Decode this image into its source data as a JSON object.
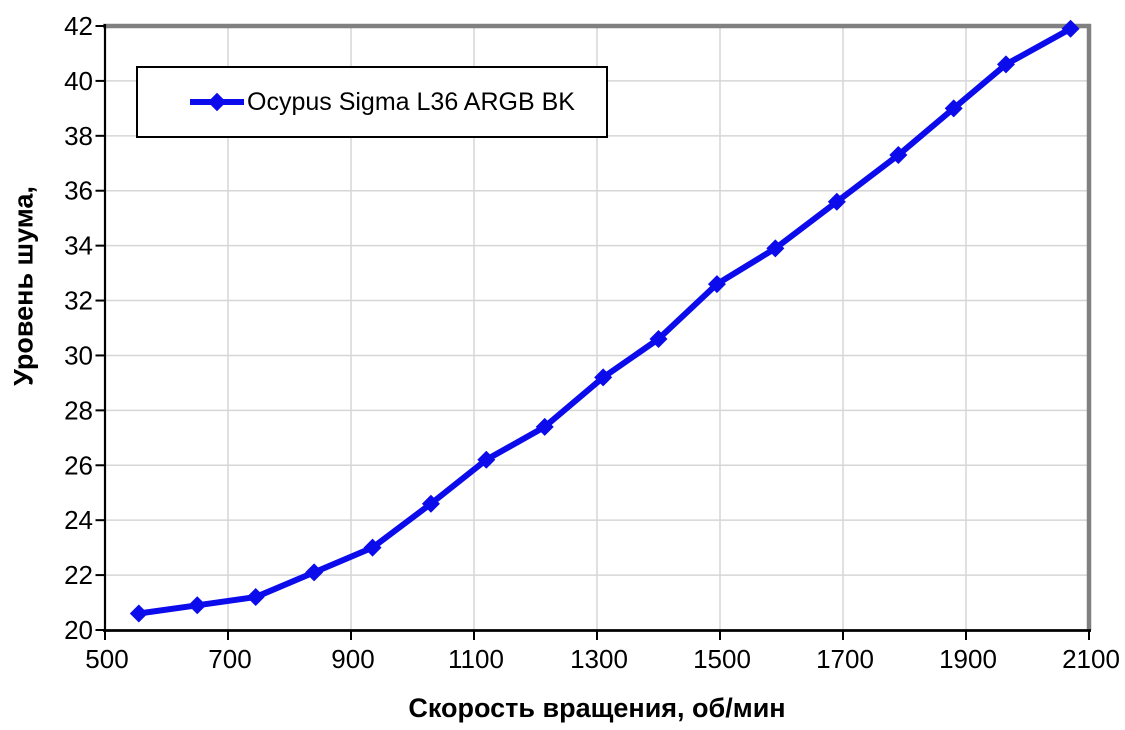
{
  "chart_data": {
    "type": "line",
    "title": "",
    "xlabel": "Скорость вращения, об/мин",
    "ylabel": "Уровень шума,",
    "xlim": [
      500,
      2100
    ],
    "ylim": [
      20,
      42
    ],
    "xticks": [
      500,
      700,
      900,
      1100,
      1300,
      1500,
      1700,
      1900,
      2100
    ],
    "yticks": [
      20,
      22,
      24,
      26,
      28,
      30,
      32,
      34,
      36,
      38,
      40,
      42
    ],
    "grid": true,
    "legend_position": "top-left",
    "series": [
      {
        "name": "Ocypus Sigma L36 ARGB BK",
        "marker": "diamond",
        "color": "#0b0beb",
        "x": [
          555,
          650,
          745,
          840,
          935,
          1030,
          1120,
          1215,
          1310,
          1400,
          1495,
          1590,
          1690,
          1790,
          1880,
          1965,
          2070
        ],
        "y": [
          20.6,
          20.9,
          21.2,
          22.1,
          23.0,
          24.6,
          26.2,
          27.4,
          29.2,
          30.6,
          32.6,
          33.9,
          35.6,
          37.3,
          39.0,
          40.6,
          41.9
        ]
      }
    ],
    "colors": {
      "grid": "#d6d6d6",
      "axis": "#000000",
      "plot_border": "#808080",
      "background": "#ffffff",
      "text": "#000000"
    }
  }
}
